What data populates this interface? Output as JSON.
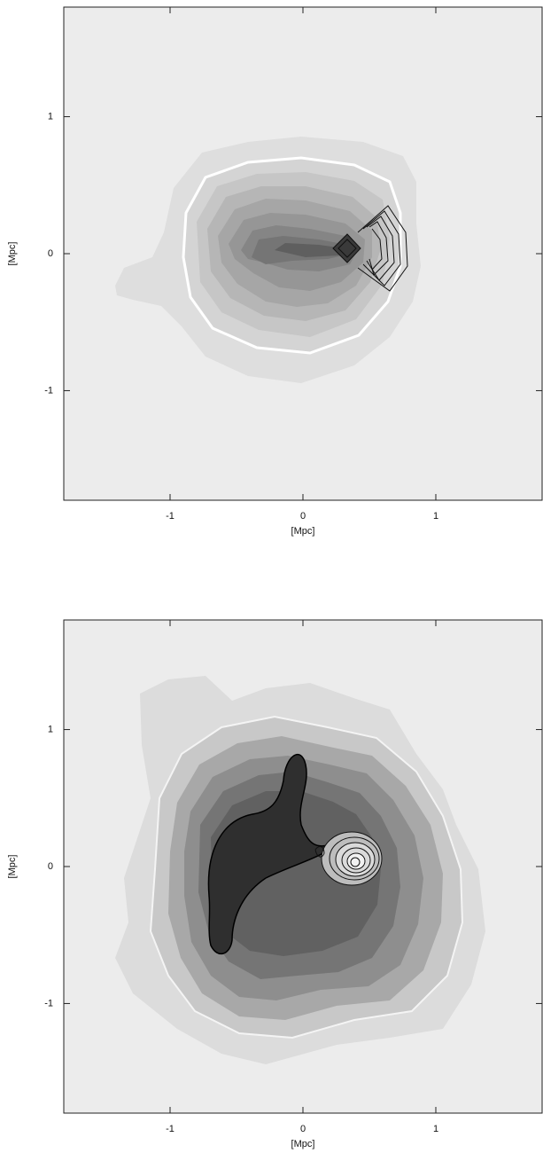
{
  "chart_data": [
    {
      "type": "contour",
      "xlabel": "[Mpc]",
      "ylabel": "[Mpc]",
      "xlim": [
        -1.8,
        1.8
      ],
      "ylim": [
        -1.8,
        1.8
      ],
      "xticks": [
        -1,
        0,
        1
      ],
      "yticks": [
        -1,
        0,
        1
      ]
    },
    {
      "type": "contour",
      "xlabel": "[Mpc]",
      "ylabel": "[Mpc]",
      "xlim": [
        -1.8,
        1.8
      ],
      "ylim": [
        -1.8,
        1.8
      ],
      "xticks": [
        -1,
        0,
        1
      ],
      "yticks": [
        -1,
        0,
        1
      ]
    }
  ]
}
